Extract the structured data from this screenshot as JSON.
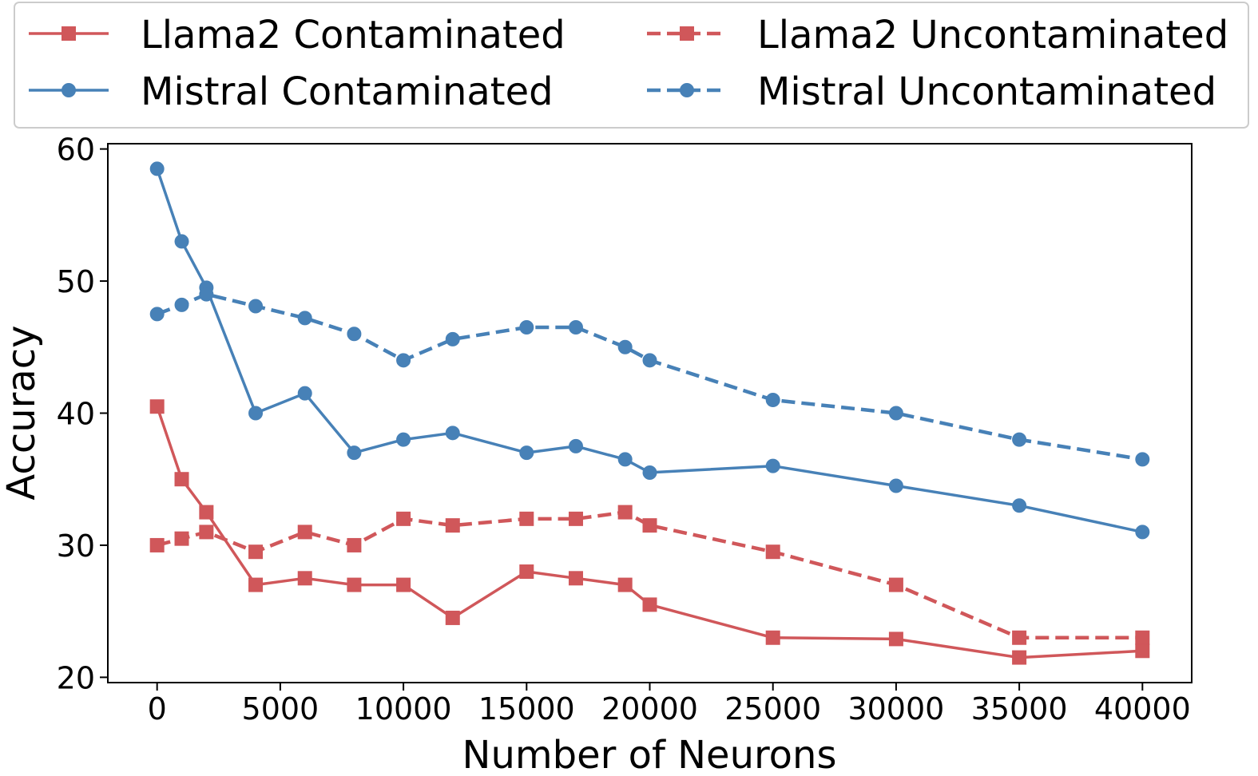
{
  "chart_data": {
    "type": "line",
    "title": "",
    "xlabel": "Number of Neurons",
    "ylabel": "Accuracy",
    "xlim": [
      -2000,
      42000
    ],
    "ylim": [
      19.6,
      60.4
    ],
    "xticks": [
      0,
      5000,
      10000,
      15000,
      20000,
      25000,
      30000,
      35000,
      40000
    ],
    "xtick_labels": [
      "0",
      "5000",
      "10000",
      "15000",
      "20000",
      "25000",
      "30000",
      "35000",
      "40000"
    ],
    "yticks": [
      20,
      30,
      40,
      50,
      60
    ],
    "ytick_labels": [
      "20",
      "30",
      "40",
      "50",
      "60"
    ],
    "grid": false,
    "legend_position": "top",
    "legend_columns": 2,
    "series": [
      {
        "name": "Llama2 Contaminated",
        "color": "#d0575a",
        "line_style": "solid",
        "marker": "square",
        "x": [
          0,
          1000,
          2000,
          4000,
          6000,
          8000,
          10000,
          12000,
          15000,
          17000,
          19000,
          20000,
          25000,
          30000,
          35000,
          40000
        ],
        "y": [
          40.5,
          35,
          32.5,
          27,
          27.5,
          27,
          27,
          24.5,
          28,
          27.5,
          27,
          25.5,
          23,
          22.9,
          21.5,
          22
        ]
      },
      {
        "name": "Mistral Contaminated",
        "color": "#4781b7",
        "line_style": "solid",
        "marker": "circle",
        "x": [
          0,
          1000,
          2000,
          4000,
          6000,
          8000,
          10000,
          12000,
          15000,
          17000,
          19000,
          20000,
          25000,
          30000,
          35000,
          40000
        ],
        "y": [
          58.5,
          53,
          49.5,
          40,
          41.5,
          37,
          38,
          38.5,
          37,
          37.5,
          36.5,
          35.5,
          36,
          34.5,
          33,
          31
        ]
      },
      {
        "name": "Llama2 Uncontaminated",
        "color": "#d0575a",
        "line_style": "dashed",
        "marker": "square",
        "x": [
          0,
          1000,
          2000,
          4000,
          6000,
          8000,
          10000,
          12000,
          15000,
          17000,
          19000,
          20000,
          25000,
          30000,
          35000,
          40000
        ],
        "y": [
          30,
          30.5,
          31,
          29.5,
          31,
          30,
          32,
          31.5,
          32,
          32,
          32.5,
          31.5,
          29.5,
          27,
          23,
          23
        ]
      },
      {
        "name": "Mistral Uncontaminated",
        "color": "#4781b7",
        "line_style": "dashed",
        "marker": "circle",
        "x": [
          0,
          1000,
          2000,
          4000,
          6000,
          8000,
          10000,
          12000,
          15000,
          17000,
          19000,
          20000,
          25000,
          30000,
          35000,
          40000
        ],
        "y": [
          47.5,
          48.2,
          49,
          48.1,
          47.2,
          46,
          44,
          45.6,
          46.5,
          46.5,
          45,
          44,
          41,
          40,
          38,
          36.5
        ]
      }
    ]
  }
}
